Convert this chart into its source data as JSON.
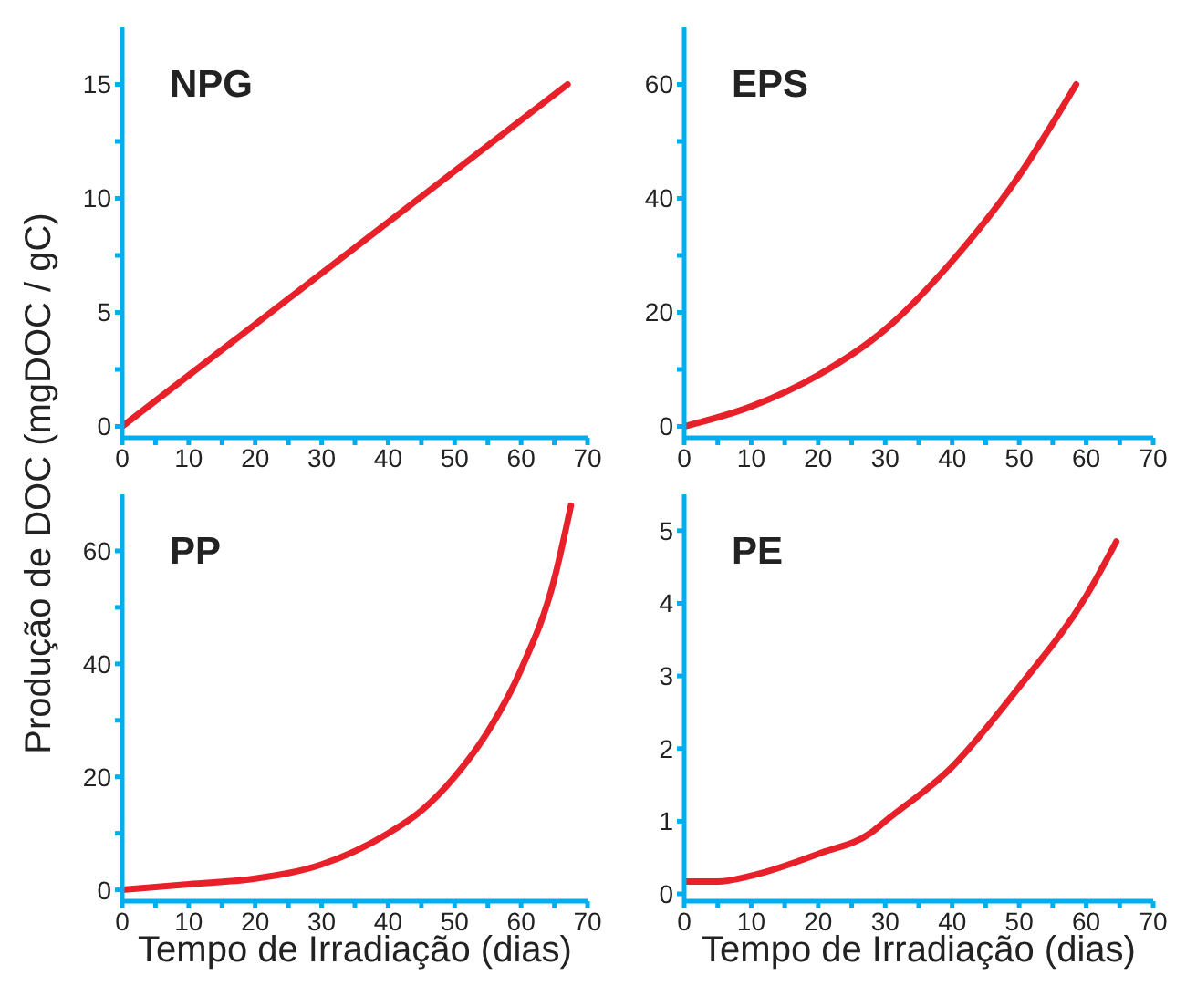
{
  "chart_data": [
    {
      "type": "line",
      "title": "NPG",
      "ylabel": "Produção de DOC (mgDOC / gC)",
      "color": "#e8202a",
      "marker": "none",
      "line_style": "solid",
      "grid": false,
      "legend": false,
      "x": [
        0,
        67
      ],
      "values": [
        0,
        15
      ],
      "xlim": [
        0,
        70
      ],
      "xticks": [
        0,
        {
          "value": 5,
          "label": null
        },
        10,
        {
          "value": 15,
          "label": null
        },
        20,
        {
          "value": 25,
          "label": null
        },
        30,
        {
          "value": 35,
          "label": null
        },
        40,
        {
          "value": 45,
          "label": null
        },
        50,
        {
          "value": 55,
          "label": null
        },
        60,
        {
          "value": 65,
          "label": null
        },
        70
      ],
      "ylim": [
        -0.5,
        17.5
      ],
      "yticks": [
        0,
        {
          "value": 2.5,
          "label": null
        },
        5,
        {
          "value": 7.5,
          "label": null
        },
        10,
        {
          "value": 12.5,
          "label": null
        },
        15
      ]
    },
    {
      "type": "line",
      "title": "EPS",
      "color": "#e8202a",
      "marker": "none",
      "line_style": "solid",
      "grid": false,
      "legend": false,
      "x": [
        0,
        10,
        20,
        30,
        40,
        50,
        58.5
      ],
      "values": [
        0,
        3.5,
        9,
        17,
        29,
        44,
        60
      ],
      "xlim": [
        0,
        70
      ],
      "xticks": [
        0,
        {
          "value": 5,
          "label": null
        },
        10,
        {
          "value": 15,
          "label": null
        },
        20,
        {
          "value": 25,
          "label": null
        },
        30,
        {
          "value": 35,
          "label": null
        },
        40,
        {
          "value": 45,
          "label": null
        },
        50,
        {
          "value": 55,
          "label": null
        },
        60,
        {
          "value": 65,
          "label": null
        },
        70
      ],
      "ylim": [
        -2,
        70
      ],
      "yticks": [
        0,
        {
          "value": 10,
          "label": null
        },
        20,
        {
          "value": 30,
          "label": null
        },
        40,
        {
          "value": 50,
          "label": null
        },
        60
      ]
    },
    {
      "type": "line",
      "title": "PP",
      "xlabel": "Tempo de Irradiação (dias)",
      "color": "#e8202a",
      "marker": "none",
      "line_style": "solid",
      "grid": false,
      "legend": false,
      "x": [
        0,
        10,
        20,
        30,
        40,
        45,
        50,
        55,
        60,
        65,
        67.5
      ],
      "values": [
        0,
        1,
        2,
        4.5,
        10,
        14,
        20,
        28,
        39,
        55,
        68
      ],
      "xlim": [
        0,
        70
      ],
      "xticks": [
        0,
        {
          "value": 5,
          "label": null
        },
        10,
        {
          "value": 15,
          "label": null
        },
        20,
        {
          "value": 25,
          "label": null
        },
        30,
        {
          "value": 35,
          "label": null
        },
        40,
        {
          "value": 45,
          "label": null
        },
        50,
        {
          "value": 55,
          "label": null
        },
        60,
        {
          "value": 65,
          "label": null
        },
        70
      ],
      "ylim": [
        -2,
        70
      ],
      "yticks": [
        0,
        {
          "value": 10,
          "label": null
        },
        20,
        {
          "value": 30,
          "label": null
        },
        40,
        {
          "value": 50,
          "label": null
        },
        60
      ]
    },
    {
      "type": "line",
      "title": "PE",
      "xlabel": "Tempo de Irradiação (dias)",
      "color": "#e8202a",
      "marker": "none",
      "line_style": "solid",
      "grid": false,
      "legend": false,
      "x": [
        0,
        5,
        10,
        20,
        28,
        30,
        40,
        50,
        60,
        64.5
      ],
      "values": [
        0.17,
        0.17,
        0.25,
        0.55,
        0.85,
        1.0,
        1.75,
        2.85,
        4.1,
        4.85
      ],
      "xlim": [
        0,
        70
      ],
      "xticks": [
        0,
        {
          "value": 5,
          "label": null
        },
        10,
        {
          "value": 15,
          "label": null
        },
        20,
        {
          "value": 25,
          "label": null
        },
        30,
        {
          "value": 35,
          "label": null
        },
        40,
        {
          "value": 45,
          "label": null
        },
        50,
        {
          "value": 55,
          "label": null
        },
        60,
        {
          "value": 65,
          "label": null
        },
        70
      ],
      "ylim": [
        -0.1,
        5.5
      ],
      "yticks": [
        0,
        1,
        2,
        3,
        4,
        5
      ]
    }
  ]
}
